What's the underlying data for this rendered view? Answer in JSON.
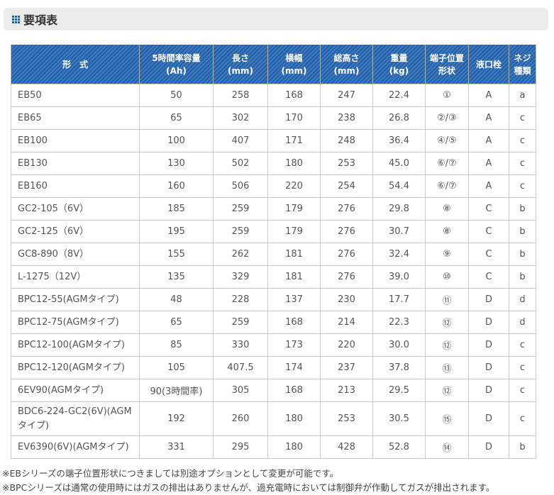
{
  "title": "要項表",
  "headers": [
    "形　式",
    "5時間率容量\n(Ah)",
    "長さ\n(mm)",
    "横幅\n(mm)",
    "総高さ\n(mm)",
    "重量\n(kg)",
    "端子位置\n形状",
    "液口栓",
    "ネジ\n種類"
  ],
  "rows": [
    [
      "EB50",
      "50",
      "258",
      "168",
      "247",
      "22.4",
      "①",
      "A",
      "a"
    ],
    [
      "EB65",
      "65",
      "302",
      "170",
      "238",
      "26.8",
      "②/③",
      "A",
      "c"
    ],
    [
      "EB100",
      "100",
      "407",
      "171",
      "248",
      "36.4",
      "④/⑤",
      "A",
      "c"
    ],
    [
      "EB130",
      "130",
      "502",
      "180",
      "253",
      "45.0",
      "⑥/⑦",
      "A",
      "c"
    ],
    [
      "EB160",
      "160",
      "506",
      "220",
      "254",
      "54.4",
      "⑥/⑦",
      "A",
      "c"
    ],
    [
      "GC2-105（6V）",
      "185",
      "259",
      "179",
      "276",
      "29.8",
      "⑧",
      "C",
      "b"
    ],
    [
      "GC2-125（6V）",
      "195",
      "259",
      "179",
      "276",
      "30.7",
      "⑧",
      "C",
      "b"
    ],
    [
      "GC8-890（8V）",
      "155",
      "262",
      "181",
      "276",
      "32.4",
      "⑨",
      "C",
      "b"
    ],
    [
      "L-1275（12V）",
      "135",
      "329",
      "181",
      "276",
      "39.0",
      "⑩",
      "C",
      "b"
    ],
    [
      "BPC12-55(AGMタイプ)",
      "48",
      "228",
      "137",
      "230",
      "17.7",
      "⑪",
      "D",
      "d"
    ],
    [
      "BPC12-75(AGMタイプ)",
      "65",
      "259",
      "168",
      "214",
      "22.3",
      "⑫",
      "D",
      "d"
    ],
    [
      "BPC12-100(AGMタイプ)",
      "85",
      "330",
      "173",
      "220",
      "30.0",
      "⑫",
      "D",
      "c"
    ],
    [
      "BPC12-120(AGMタイプ)",
      "105",
      "407.5",
      "174",
      "237",
      "37.8",
      "⑬",
      "D",
      "c"
    ],
    [
      "6EV90(AGMタイプ)",
      "90(3時間率)",
      "305",
      "168",
      "213",
      "29.5",
      "⑫",
      "D",
      "c"
    ],
    [
      "BDC6-224-GC2(6V)(AGMタイプ)",
      "192",
      "260",
      "180",
      "253",
      "30.5",
      "⑮",
      "D",
      "c"
    ],
    [
      "EV6390(6V)(AGMタイプ)",
      "331",
      "295",
      "180",
      "428",
      "52.8",
      "⑭",
      "D",
      "b"
    ]
  ],
  "notes": [
    "※EBシリーズの端子位置形状につきましては別途オプションとして変更が可能です。",
    "※BPCシリーズは通常の使用時にはガスの排出はありませんが、過充電時においては制御弁が作動してガスが排出されます。"
  ],
  "colors": {
    "header_bg": "#2460a8",
    "accent": "#1f5fb4"
  }
}
